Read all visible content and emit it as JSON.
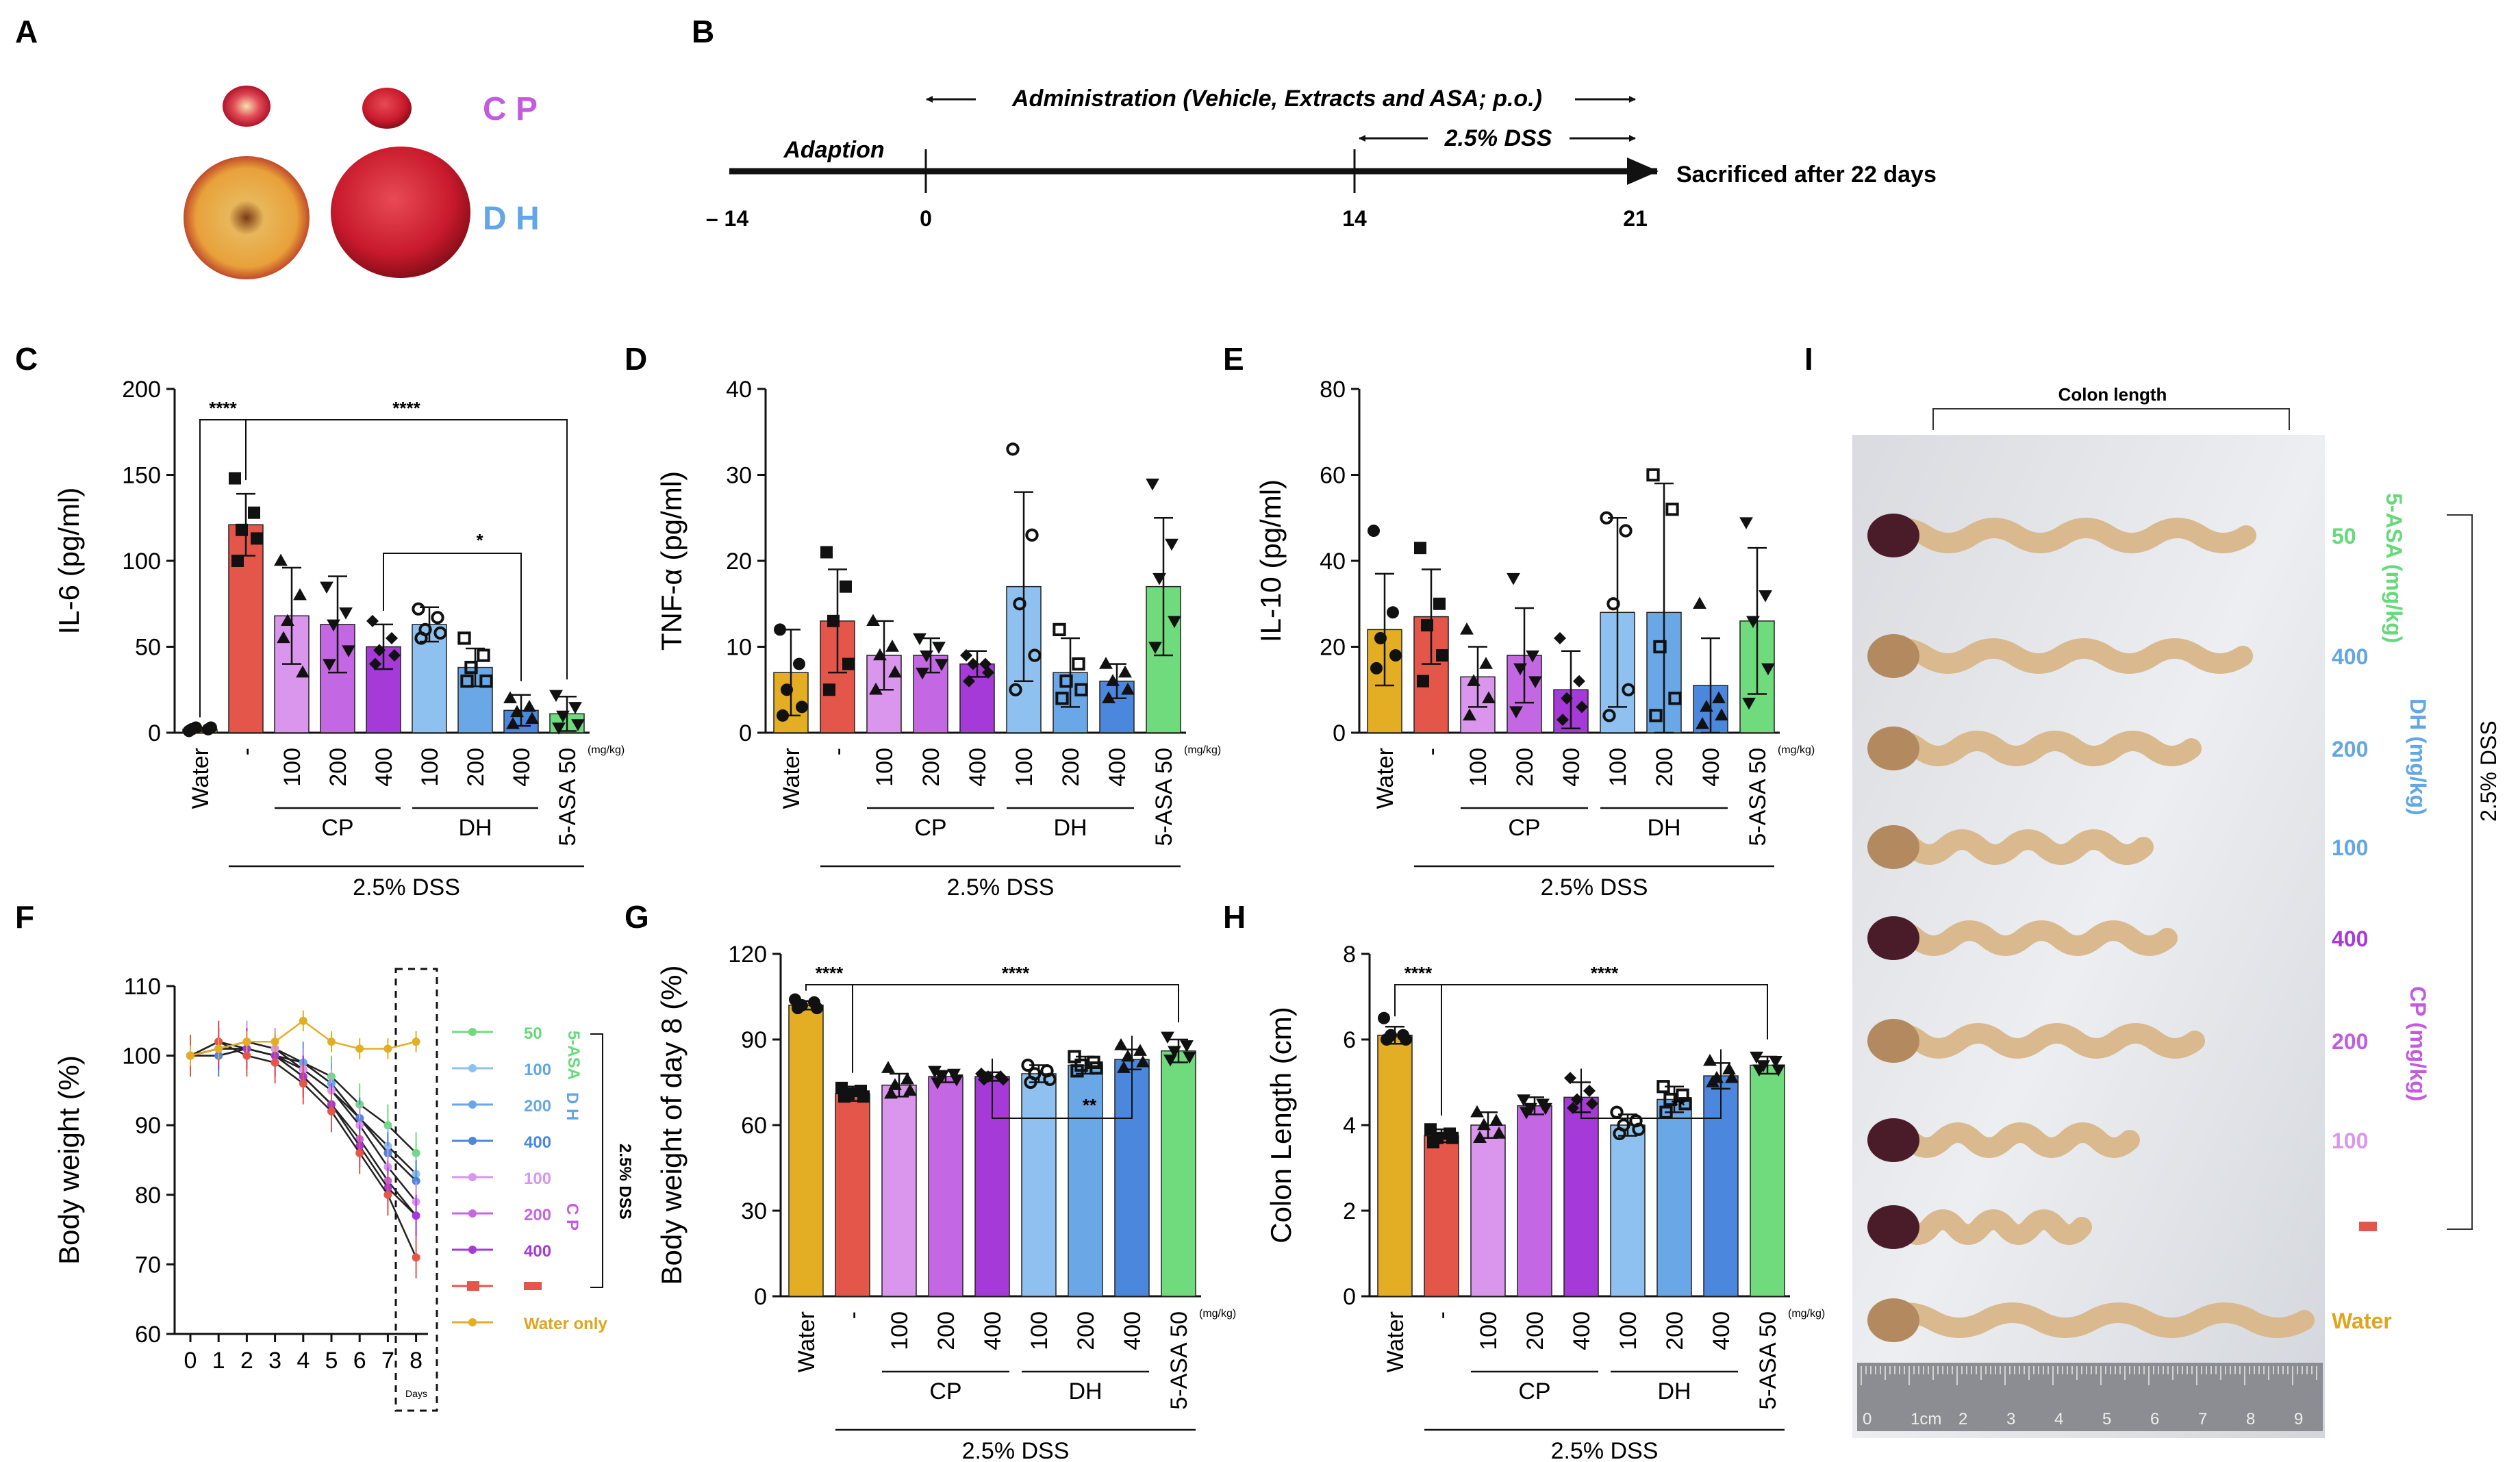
{
  "colors": {
    "water": "#E3AE23",
    "dss": "#E4554A",
    "cp100": "#D996EC",
    "cp200": "#C467E3",
    "cp400": "#A63AD8",
    "dh100": "#8FC1F0",
    "dh200": "#6AA7E6",
    "dh400": "#4B87DD",
    "asa": "#6FDB7D",
    "cpText": "#C35BE0",
    "dhText": "#62A6E5",
    "asaText": "#66D97A",
    "waterText": "#E0A41E"
  },
  "panel_labels": {
    "A": "A",
    "B": "B",
    "C": "C",
    "D": "D",
    "E": "E",
    "F": "F",
    "G": "G",
    "H": "H",
    "I": "I"
  },
  "panelA": {
    "cp_label": "C P",
    "dh_label": "D H"
  },
  "panelB": {
    "admin_text": "Administration (Vehicle, Extracts and ASA; p.o.)",
    "dss_text": "2.5% DSS",
    "adaption": "Adaption",
    "sacrificed": "Sacrificed after 22 days",
    "ticks": [
      "– 14",
      "0",
      "14",
      "21"
    ]
  },
  "shared": {
    "categories": [
      "Water",
      "-",
      "100",
      "200",
      "400",
      "100",
      "200",
      "400",
      "5-ASA 50"
    ],
    "cp": "CP",
    "dh": "DH",
    "dss": "2.5% DSS",
    "mgkg": "(mg/kg)"
  },
  "chart_data": [
    {
      "id": "C",
      "type": "bar",
      "ylabel": "IL-6 (pg/ml)",
      "ylim": [
        0,
        200
      ],
      "yticks": [
        "0",
        "50",
        "100",
        "150",
        "200"
      ],
      "values": [
        2,
        121,
        68,
        63,
        50,
        63,
        38,
        13,
        11
      ],
      "sd": [
        1,
        18,
        28,
        28,
        13,
        10,
        11,
        9,
        10
      ],
      "points": [
        [
          1,
          2,
          3,
          3,
          2
        ],
        [
          148,
          128,
          118,
          113,
          100
        ],
        [
          100,
          80,
          65,
          35,
          55
        ],
        [
          85,
          70,
          63,
          48,
          40
        ],
        [
          65,
          55,
          48,
          45,
          40
        ],
        [
          72,
          67,
          60,
          58,
          55
        ],
        [
          55,
          45,
          38,
          30,
          30
        ],
        [
          20,
          15,
          12,
          8,
          5
        ],
        [
          22,
          15,
          10,
          5,
          3
        ]
      ],
      "sig": [
        {
          "label": "****",
          "from": 0,
          "to": 1
        },
        {
          "label": "****",
          "from": 1,
          "to": 8
        },
        {
          "label": "*",
          "from": 4,
          "to": 7
        }
      ]
    },
    {
      "id": "D",
      "type": "bar",
      "ylabel": "TNF-α (pg/ml)",
      "ylim": [
        0,
        40
      ],
      "yticks": [
        "0",
        "10",
        "20",
        "30",
        "40"
      ],
      "values": [
        7,
        13,
        9,
        9,
        8,
        17,
        7,
        6,
        17
      ],
      "sd": [
        5,
        6,
        4,
        2,
        1.5,
        11,
        4,
        2,
        8
      ],
      "points": [
        [
          12,
          8,
          5,
          3,
          2
        ],
        [
          21,
          17,
          13,
          8,
          5
        ],
        [
          13,
          10,
          9,
          7,
          5
        ],
        [
          11,
          10,
          9,
          8,
          7
        ],
        [
          9,
          8,
          8,
          7,
          6
        ],
        [
          33,
          23,
          15,
          9,
          5
        ],
        [
          12,
          8,
          6,
          5,
          4
        ],
        [
          8,
          7,
          6,
          5,
          4
        ],
        [
          29,
          22,
          18,
          13,
          10
        ]
      ]
    },
    {
      "id": "E",
      "type": "bar",
      "ylabel": "IL-10 (pg/ml)",
      "ylim": [
        0,
        80
      ],
      "yticks": [
        "0",
        "20",
        "40",
        "60",
        "80"
      ],
      "values": [
        24,
        27,
        13,
        18,
        10,
        28,
        28,
        11,
        26
      ],
      "sd": [
        13,
        11,
        7,
        11,
        9,
        22,
        30,
        11,
        17
      ],
      "points": [
        [
          47,
          28,
          22,
          18,
          15
        ],
        [
          43,
          30,
          25,
          18,
          12
        ],
        [
          24,
          16,
          12,
          8,
          4
        ],
        [
          36,
          18,
          15,
          12,
          5
        ],
        [
          22,
          12,
          8,
          6,
          3
        ],
        [
          50,
          47,
          30,
          10,
          4
        ],
        [
          60,
          52,
          20,
          8,
          4
        ],
        [
          30,
          8,
          6,
          4,
          2
        ],
        [
          49,
          32,
          26,
          15,
          7
        ]
      ]
    },
    {
      "id": "F",
      "type": "line",
      "ylabel": "Body weight (%)",
      "xlabel": "Days",
      "ylim": [
        60,
        110
      ],
      "yticks": [
        "60",
        "70",
        "80",
        "90",
        "100",
        "110"
      ],
      "x": [
        0,
        1,
        2,
        3,
        4,
        5,
        6,
        7,
        8
      ],
      "xticks": [
        "0",
        "1",
        "2",
        "3",
        "4",
        "5",
        "6",
        "7",
        "8"
      ],
      "series": [
        {
          "name": "5-ASA 50",
          "color": "#6FDB7D",
          "values": [
            100,
            100,
            101,
            100,
            99,
            97,
            93,
            90,
            86
          ],
          "err": 3
        },
        {
          "name": "DH 100",
          "color": "#8FC1F0",
          "values": [
            100,
            101,
            101,
            100,
            99,
            96,
            91,
            87,
            83
          ],
          "err": 3
        },
        {
          "name": "DH 200",
          "color": "#6AA7E6",
          "values": [
            100,
            101,
            102,
            101,
            99,
            96,
            91,
            86,
            82
          ],
          "err": 3
        },
        {
          "name": "DH 400",
          "color": "#4B87DD",
          "values": [
            100,
            100,
            101,
            100,
            98,
            95,
            91,
            86,
            82
          ],
          "err": 3
        },
        {
          "name": "CP 100",
          "color": "#D996EC",
          "values": [
            100,
            101,
            102,
            101,
            98,
            95,
            90,
            84,
            79
          ],
          "err": 3
        },
        {
          "name": "CP 200",
          "color": "#C467E3",
          "values": [
            100,
            102,
            101,
            100,
            97,
            93,
            88,
            82,
            77
          ],
          "err": 3
        },
        {
          "name": "CP 400",
          "color": "#A63AD8",
          "values": [
            100,
            101,
            101,
            100,
            97,
            93,
            87,
            81,
            77
          ],
          "err": 3
        },
        {
          "name": "DSS",
          "color": "#E4554A",
          "values": [
            100,
            102,
            100,
            99,
            96,
            92,
            86,
            80,
            71
          ],
          "err": 3
        },
        {
          "name": "Water only",
          "color": "#E3AE23",
          "values": [
            100,
            101,
            102,
            102,
            105,
            102,
            101,
            101,
            102
          ],
          "err": 1.5
        }
      ],
      "legend": [
        "50",
        "100",
        "200",
        "400",
        "100",
        "200",
        "400",
        "",
        "Water only"
      ],
      "legend_groups": {
        "asa": "5-ASA",
        "dh": "D H",
        "cp": "C P",
        "dss": "2.5% DSS"
      }
    },
    {
      "id": "G",
      "type": "bar",
      "ylabel": "Body weight of day 8 (%)",
      "ylim": [
        0,
        120
      ],
      "yticks": [
        "0",
        "30",
        "60",
        "90",
        "120"
      ],
      "values": [
        102,
        71,
        74,
        77,
        77,
        78,
        81,
        83,
        86
      ],
      "sd": [
        1.5,
        2.5,
        4,
        2,
        1.5,
        3,
        3,
        3.5,
        4
      ],
      "points": [
        [
          104,
          103,
          102,
          101,
          101
        ],
        [
          73,
          72,
          71,
          70,
          70
        ],
        [
          80,
          76,
          74,
          72,
          71
        ],
        [
          79,
          78,
          77,
          76,
          75
        ],
        [
          78,
          77,
          77,
          76,
          76
        ],
        [
          81,
          79,
          78,
          76,
          75
        ],
        [
          84,
          82,
          81,
          80,
          79
        ],
        [
          88,
          86,
          84,
          82,
          80
        ],
        [
          91,
          88,
          86,
          84,
          83
        ]
      ],
      "sig": [
        {
          "label": "****",
          "from": 0,
          "to": 1
        },
        {
          "label": "****",
          "from": 1,
          "to": 8
        },
        {
          "label": "**",
          "from": 4,
          "to": 7
        }
      ]
    },
    {
      "id": "H",
      "type": "bar",
      "ylabel": "Colon Length (cm)",
      "ylim": [
        0,
        8
      ],
      "yticks": [
        "0",
        "2",
        "4",
        "6",
        "8"
      ],
      "values": [
        6.1,
        3.75,
        4.0,
        4.45,
        4.65,
        4.0,
        4.6,
        5.15,
        5.4
      ],
      "sd": [
        0.2,
        0.15,
        0.3,
        0.2,
        0.35,
        0.25,
        0.3,
        0.3,
        0.2
      ],
      "points": [
        [
          6.5,
          6.1,
          6.1,
          6.0,
          6.0
        ],
        [
          3.9,
          3.8,
          3.7,
          3.7,
          3.6
        ],
        [
          4.3,
          4.1,
          4.0,
          3.8,
          3.7
        ],
        [
          4.6,
          4.5,
          4.4,
          4.4,
          4.3
        ],
        [
          5.1,
          4.8,
          4.6,
          4.5,
          4.4
        ],
        [
          4.3,
          4.1,
          4.0,
          3.9,
          3.8
        ],
        [
          4.9,
          4.7,
          4.6,
          4.5,
          4.3
        ],
        [
          5.5,
          5.3,
          5.1,
          5.1,
          5.0
        ],
        [
          5.6,
          5.5,
          5.4,
          5.3,
          5.3
        ]
      ],
      "sig": [
        {
          "label": "****",
          "from": 0,
          "to": 1
        },
        {
          "label": "****",
          "from": 1,
          "to": 8
        },
        {
          "label": "**",
          "from": 4,
          "to": 7
        }
      ]
    }
  ],
  "panelI": {
    "title": "Colon length",
    "labels": [
      "50",
      "400",
      "200",
      "100",
      "400",
      "200",
      "100",
      "-",
      "Water"
    ],
    "asa_group": "5-ASA (mg/kg)",
    "dh_group": "DH (mg/kg)",
    "cp_group": "CP (mg/kg)",
    "dss": "2.5% DSS",
    "ruler": [
      "0",
      "1cm",
      "2",
      "3",
      "4",
      "5",
      "6",
      "7",
      "8",
      "9"
    ]
  }
}
